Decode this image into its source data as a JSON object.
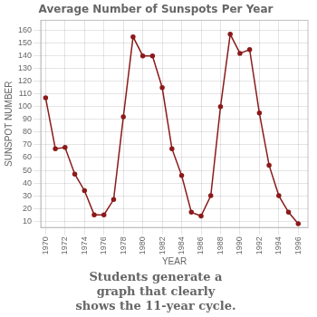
{
  "chart_data": {
    "type": "line",
    "title": "Average Number of Sunspots Per Year",
    "xlabel": "YEAR",
    "ylabel": "SUNSPOT NUMBER",
    "x": [
      1970,
      1971,
      1972,
      1973,
      1974,
      1975,
      1976,
      1977,
      1978,
      1979,
      1980,
      1981,
      1982,
      1983,
      1984,
      1985,
      1986,
      1987,
      1988,
      1989,
      1990,
      1991,
      1992,
      1993,
      1994,
      1995,
      1996
    ],
    "values": [
      107,
      67,
      68,
      47,
      34,
      15,
      15,
      27,
      92,
      155,
      140,
      140,
      115,
      67,
      46,
      17,
      14,
      30,
      100,
      157,
      142,
      145,
      95,
      54,
      30,
      17,
      8
    ],
    "color": "#8B1A1A",
    "marker": "circle",
    "xlim": [
      1969.5,
      1997.0
    ],
    "xticks": [
      1970,
      1972,
      1974,
      1976,
      1978,
      1980,
      1982,
      1984,
      1986,
      1988,
      1990,
      1992,
      1994,
      1996
    ],
    "ylim": [
      5,
      168
    ],
    "yticks": [
      10,
      20,
      30,
      40,
      50,
      60,
      70,
      80,
      90,
      100,
      110,
      120,
      130,
      140,
      150,
      160
    ],
    "grid": true,
    "annotation": "Students generate a\ngraph that clearly\nshows the 11-year cycle."
  }
}
